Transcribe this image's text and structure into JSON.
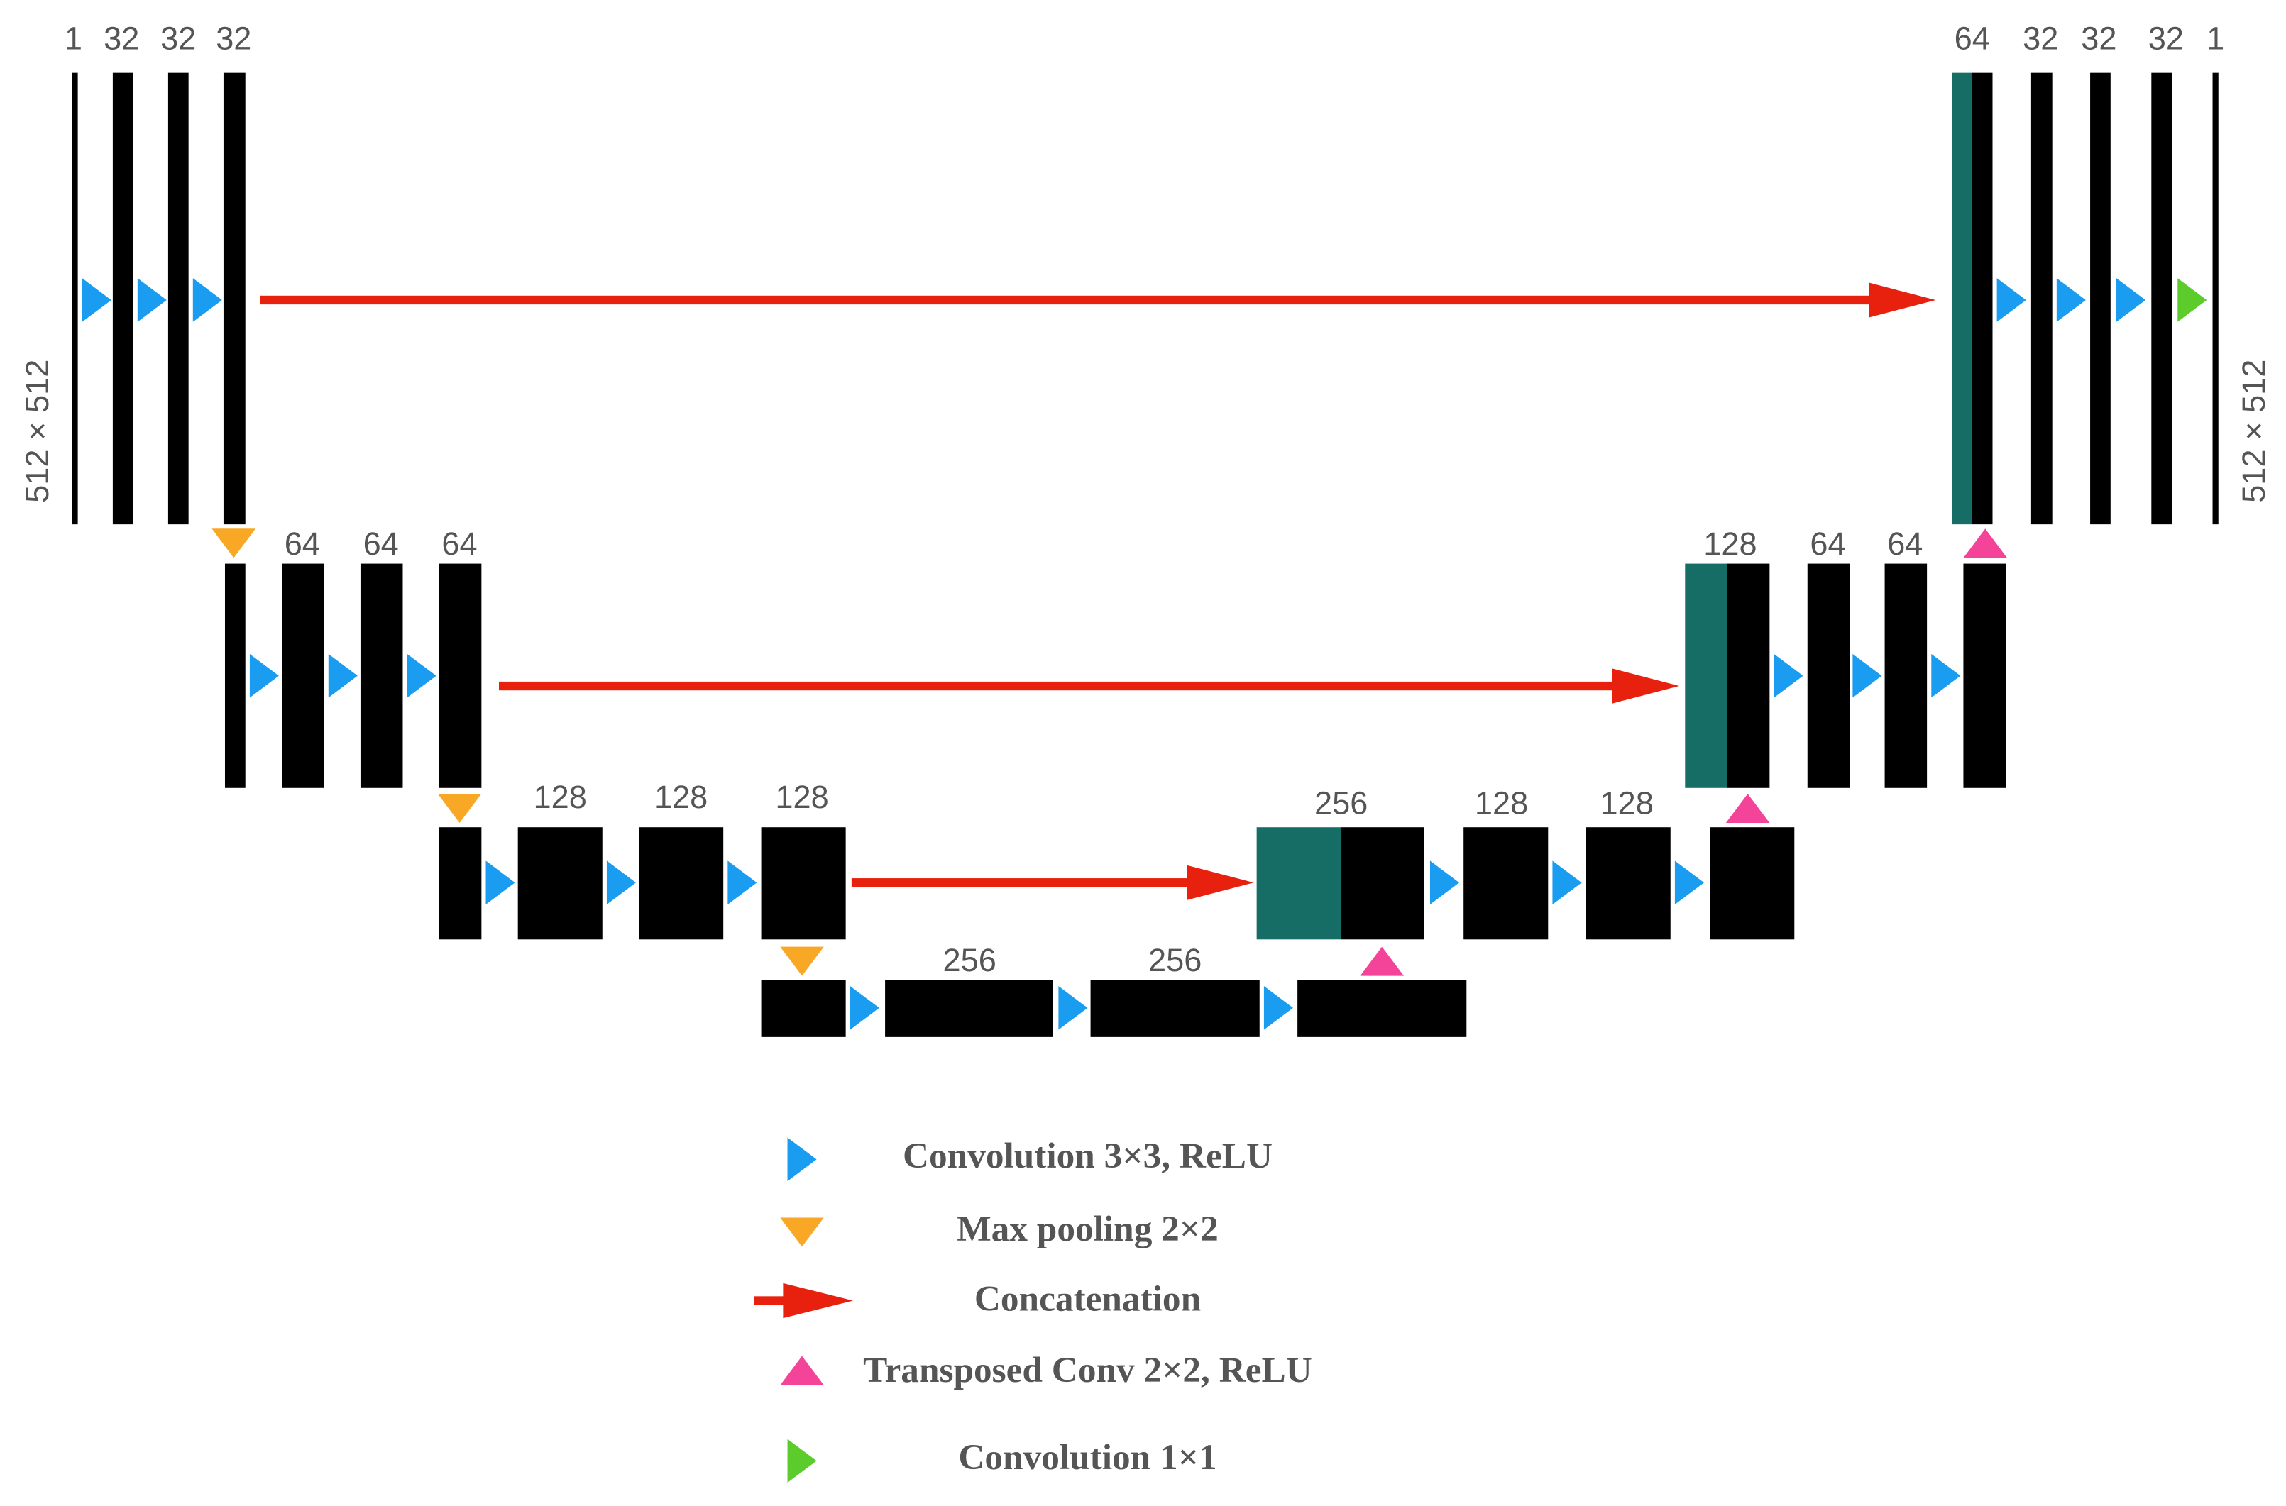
{
  "levels": [
    {
      "encoder_channels": [
        1,
        32,
        32,
        32
      ],
      "decoder_channels": [
        64,
        32,
        32,
        32,
        1
      ]
    },
    {
      "encoder_channels": [
        64,
        64,
        64
      ],
      "decoder_channels": [
        128,
        64,
        64
      ]
    },
    {
      "encoder_channels": [
        128,
        128,
        128
      ],
      "decoder_channels": [
        256,
        128,
        128
      ]
    },
    {
      "bottleneck_channels": [
        256,
        256
      ]
    }
  ],
  "input_size": "512 × 512",
  "output_size": "512 × 512",
  "legend": [
    "Convolution 3×3, ReLU",
    "Max pooling 2×2",
    "Concatenation",
    "Transposed Conv 2×2, ReLU",
    "Convolution 1×1"
  ]
}
